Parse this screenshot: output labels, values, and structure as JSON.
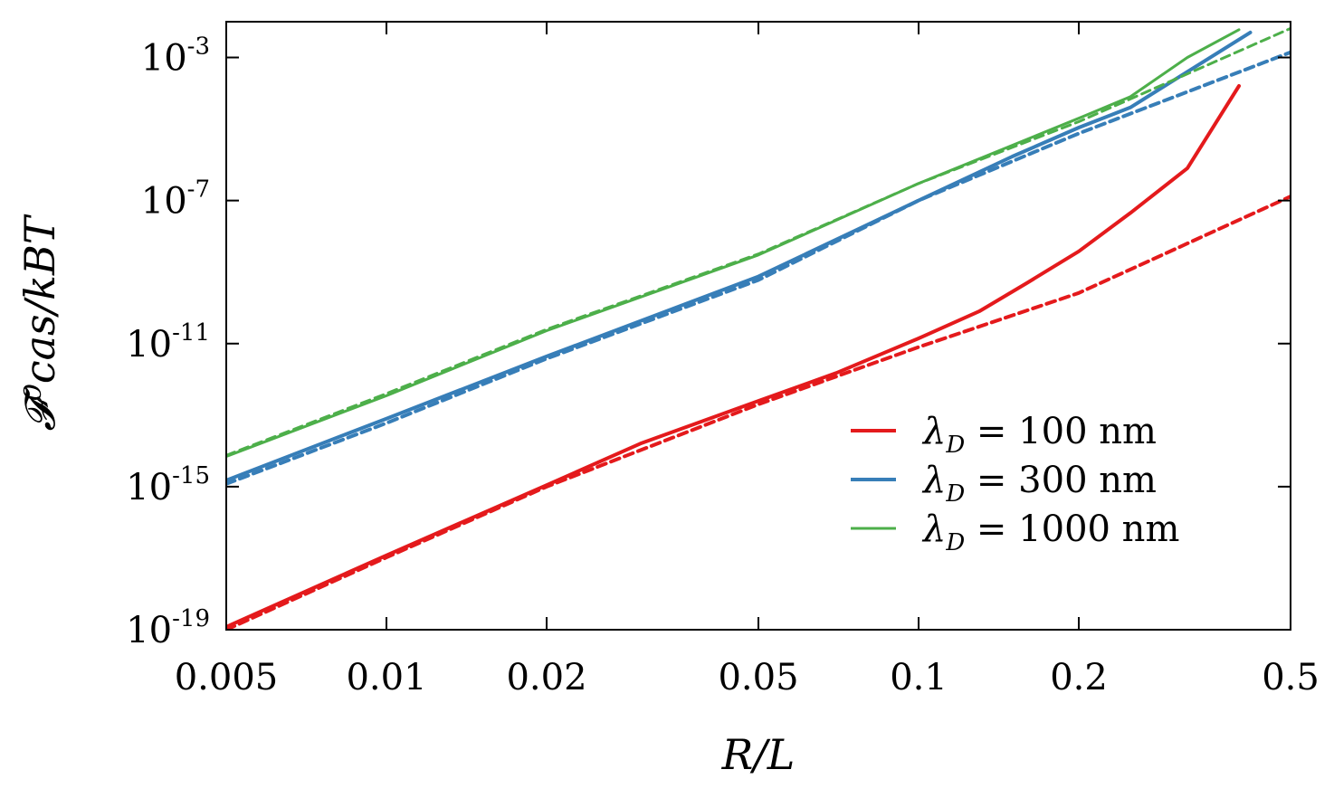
{
  "chart_data": {
    "type": "line",
    "xlabel": "R/L",
    "ylabel": "𝓕⁰cas/kBT",
    "x_scale": "log",
    "y_scale": "log",
    "xlim": [
      0.005,
      0.5
    ],
    "ylim": [
      1e-19,
      0.01
    ],
    "x_ticks": [
      {
        "value": 0.005,
        "label": "0.005"
      },
      {
        "value": 0.01,
        "label": "0.01"
      },
      {
        "value": 0.02,
        "label": "0.02"
      },
      {
        "value": 0.05,
        "label": "0.05"
      },
      {
        "value": 0.1,
        "label": "0.1"
      },
      {
        "value": 0.2,
        "label": "0.2"
      },
      {
        "value": 0.5,
        "label": "0.5"
      }
    ],
    "y_ticks": [
      {
        "value": 1e-19,
        "base": "10",
        "exp": "-19"
      },
      {
        "value": 1e-15,
        "base": "10",
        "exp": "-15"
      },
      {
        "value": 1e-11,
        "base": "10",
        "exp": "-11"
      },
      {
        "value": 1e-07,
        "base": "10",
        "exp": "-7"
      },
      {
        "value": 0.001,
        "base": "10",
        "exp": "-3"
      }
    ],
    "legend_position": "lower-right",
    "grid": false,
    "legend": [
      {
        "symbol": "λ",
        "sub": "D",
        "rest": " = 100 nm",
        "color": "#e41a1c"
      },
      {
        "symbol": "λ",
        "sub": "D",
        "rest": " = 300 nm",
        "color": "#377eb8"
      },
      {
        "symbol": "λ",
        "sub": "D",
        "rest": " = 1000 nm",
        "color": "#4daf4a"
      }
    ],
    "series": [
      {
        "legend_index": 0,
        "style": "solid",
        "color": "#e41a1c",
        "points": [
          [
            0.005,
            1.2e-19
          ],
          [
            0.01,
            1.2e-17
          ],
          [
            0.02,
            1.1e-15
          ],
          [
            0.03,
            1.6e-14
          ],
          [
            0.05,
            2.5e-13
          ],
          [
            0.07,
            1.5e-12
          ],
          [
            0.1,
            1.4e-11
          ],
          [
            0.13,
            8e-11
          ],
          [
            0.16,
            5e-10
          ],
          [
            0.2,
            3.8e-09
          ],
          [
            0.25,
            4.5e-08
          ],
          [
            0.32,
            8e-07
          ],
          [
            0.4,
            0.00016
          ]
        ]
      },
      {
        "legend_index": 0,
        "style": "dashed",
        "color": "#e41a1c",
        "points": [
          [
            0.005,
            1e-19
          ],
          [
            0.01,
            1.05e-17
          ],
          [
            0.02,
            1e-15
          ],
          [
            0.05,
            2e-13
          ],
          [
            0.1,
            8e-12
          ],
          [
            0.2,
            2.6e-10
          ],
          [
            0.5,
            1.3e-07
          ]
        ]
      },
      {
        "legend_index": 1,
        "style": "solid",
        "color": "#377eb8",
        "points": [
          [
            0.005,
            1.5e-15
          ],
          [
            0.01,
            8e-14
          ],
          [
            0.02,
            4.4e-12
          ],
          [
            0.05,
            7.5e-10
          ],
          [
            0.1,
            1e-07
          ],
          [
            0.15,
            1.7e-06
          ],
          [
            0.2,
            1.1e-05
          ],
          [
            0.25,
            4e-05
          ],
          [
            0.32,
            0.0004
          ],
          [
            0.42,
            0.005
          ]
        ]
      },
      {
        "legend_index": 1,
        "style": "dashed",
        "color": "#377eb8",
        "points": [
          [
            0.005,
            1.2e-15
          ],
          [
            0.01,
            6e-14
          ],
          [
            0.02,
            3.8e-12
          ],
          [
            0.05,
            6e-10
          ],
          [
            0.1,
            1e-07
          ],
          [
            0.2,
            7.5e-06
          ],
          [
            0.5,
            0.0014
          ]
        ]
      },
      {
        "legend_index": 2,
        "style": "solid",
        "color": "#4daf4a",
        "points": [
          [
            0.005,
            7e-15
          ],
          [
            0.01,
            3.5e-13
          ],
          [
            0.02,
            2.3e-11
          ],
          [
            0.05,
            3e-09
          ],
          [
            0.1,
            3e-07
          ],
          [
            0.15,
            3.5e-06
          ],
          [
            0.2,
            2e-05
          ],
          [
            0.25,
            8e-05
          ],
          [
            0.32,
            0.001
          ],
          [
            0.4,
            0.006
          ]
        ]
      },
      {
        "legend_index": 2,
        "style": "dashed",
        "color": "#4daf4a",
        "points": [
          [
            0.005,
            7.5e-15
          ],
          [
            0.01,
            4e-13
          ],
          [
            0.02,
            2.5e-11
          ],
          [
            0.05,
            3.2e-09
          ],
          [
            0.1,
            3e-07
          ],
          [
            0.2,
            1.6e-05
          ],
          [
            0.5,
            0.0065
          ]
        ]
      }
    ]
  }
}
